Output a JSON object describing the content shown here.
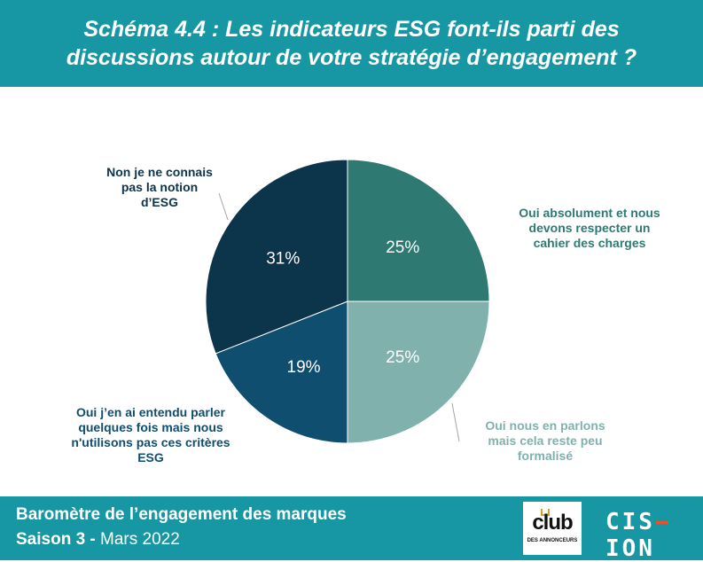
{
  "header": {
    "title_line1": "Schéma 4.4 : Les indicateurs ESG font-ils parti des",
    "title_line2": "discussions autour de votre stratégie d’engagement ?"
  },
  "chart_data": {
    "type": "pie",
    "start_angle_deg": 0,
    "direction": "clockwise",
    "slices": [
      {
        "label_lines": [
          "Oui absolument et nous",
          "devons respecter un",
          "cahier des charges"
        ],
        "value": 25,
        "value_label": "25%",
        "color": "#2e7a72",
        "label_color": "#2e7a72"
      },
      {
        "label_lines": [
          "Oui nous en parlons",
          "mais cela reste peu",
          "formalisé"
        ],
        "value": 25,
        "value_label": "25%",
        "color": "#80b1ad",
        "label_color": "#80b1ad"
      },
      {
        "label_lines": [
          "Oui j’en ai entendu parler",
          "quelques fois mais nous",
          "n'utilisons pas ces critères",
          "ESG"
        ],
        "value": 19,
        "value_label": "19%",
        "color": "#0f4e6e",
        "label_color": "#0f4e6e"
      },
      {
        "label_lines": [
          "Non je ne connais",
          "pas la notion",
          "d’ESG"
        ],
        "value": 31,
        "value_label": "31%",
        "color": "#0c344a",
        "label_color": "#0c344a"
      }
    ]
  },
  "footer": {
    "line1": "Baromètre de l’engagement des marques",
    "season": "Saison 3 -",
    "date": " Mars 2022",
    "club_word": "club",
    "club_sub": "DES ANNONCEURS",
    "cision_left": "CIS",
    "cision_right": "ION"
  }
}
